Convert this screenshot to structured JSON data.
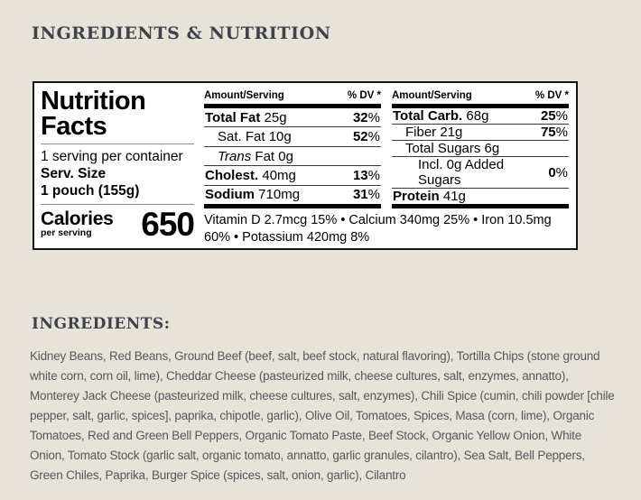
{
  "colors": {
    "page_background": "#e7e3db",
    "heading_text": "#3e434a",
    "body_text": "#55585d",
    "label_background": "#ffffff",
    "label_border": "#141414",
    "label_text": "#000000"
  },
  "section_title": "INGREDIENTS & NUTRITION",
  "nutrition_label": {
    "title_line1": "Nutrition",
    "title_line2": "Facts",
    "servings_per_container": "1 serving per container",
    "serving_size_label": "Serv. Size",
    "serving_size_value": "1 pouch (155g)",
    "calories_label": "Calories",
    "calories_sub": "per serving",
    "calories_value": "650",
    "col_header_amount": "Amount/Serving",
    "col_header_dv": "% DV *",
    "left_rows": [
      {
        "bold": "Total Fat",
        "italic": "",
        "rest": " 25g",
        "dv_num": "32",
        "dv_unit": "%"
      },
      {
        "bold": "",
        "italic": "",
        "rest": "Sat. Fat 10g",
        "dv_num": "52",
        "dv_unit": "%"
      },
      {
        "bold": "",
        "italic": "Trans",
        "rest": " Fat 0g",
        "dv_num": "",
        "dv_unit": ""
      },
      {
        "bold": "Cholest.",
        "italic": "",
        "rest": " 40mg",
        "dv_num": "13",
        "dv_unit": "%"
      },
      {
        "bold": "Sodium",
        "italic": "",
        "rest": " 710mg",
        "dv_num": "31",
        "dv_unit": "%"
      }
    ],
    "right_rows": [
      {
        "bold": "Total Carb.",
        "italic": "",
        "rest": " 68g",
        "dv_num": "25",
        "dv_unit": "%"
      },
      {
        "bold": "",
        "italic": "",
        "rest": "Fiber 21g",
        "dv_num": "75",
        "dv_unit": "%"
      },
      {
        "bold": "",
        "italic": "",
        "rest": "Total Sugars 6g",
        "dv_num": "",
        "dv_unit": ""
      },
      {
        "bold": "",
        "italic": "",
        "rest": "Incl. 0g Added Sugars",
        "dv_num": "0",
        "dv_unit": "%"
      },
      {
        "bold": "Protein",
        "italic": "",
        "rest": " 41g",
        "dv_num": "",
        "dv_unit": ""
      }
    ],
    "micronutrients": "Vitamin D 2.7mcg 15% • Calcium 340mg 25% • Iron 10.5mg 60% • Potassium 420mg 8%"
  },
  "ingredients": {
    "title": "INGREDIENTS:",
    "text": "Kidney Beans, Red Beans, Ground Beef (beef, salt, beef stock, natural flavoring), Tortilla Chips (stone ground white corn, corn oil, lime), Cheddar Cheese (pasteurized milk, cheese cultures, salt, enzymes, annatto), Monterey Jack Cheese (pasteurized milk, cheese cultures, salt, enzymes), Chili Spice (cumin, chili powder [chile pepper, salt, garlic, spices], paprika, chipotle, garlic), Olive Oil, Tomatoes, Spices, Masa (corn, lime), Organic Tomatoes, Red and Green Bell Peppers, Organic Tomato Paste, Beef Stock, Organic Yellow Onion, White Onion, Tomato Stock (garlic salt, organic tomato, annatto, garlic granules, cilantro), Sea Salt, Bell Peppers, Green Chiles, Paprika, Burger Spice (spices, salt, onion, garlic), Cilantro"
  }
}
